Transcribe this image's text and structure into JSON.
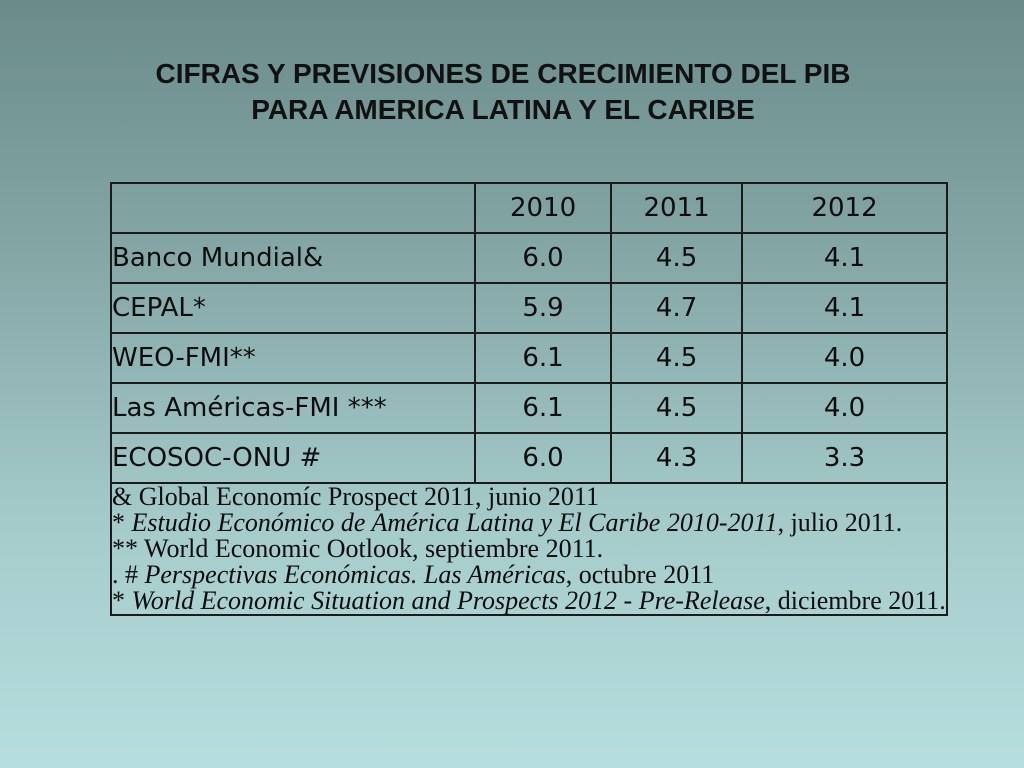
{
  "title": {
    "line1": "CIFRAS Y PREVISIONES DE CRECIMIENTO DEL PIB",
    "line2": "PARA AMERICA LATINA Y EL CARIBE"
  },
  "table": {
    "corner": "",
    "headers": [
      "2010",
      "2011",
      "2012"
    ],
    "rows": [
      {
        "label": "Banco Mundial&",
        "values": [
          "6.0",
          "4.5",
          "4.1"
        ]
      },
      {
        "label": "CEPAL*",
        "values": [
          "5.9",
          "4.7",
          "4.1"
        ]
      },
      {
        "label": "WEO-FMI**",
        "values": [
          "6.1",
          "4.5",
          "4.0"
        ]
      },
      {
        "label": "Las Américas-FMI ***",
        "values": [
          "6.1",
          "4.5",
          "4.0"
        ]
      },
      {
        "label": "ECOSOC-ONU #",
        "values": [
          "6.0",
          "4.3",
          "3.3"
        ]
      }
    ]
  },
  "notes": [
    {
      "prefix": "& ",
      "italic": "",
      "suffix": "Global Economíc Prospect 2011, junio 2011"
    },
    {
      "prefix": "* ",
      "italic": "Estudio Económico de América Latina y El Caribe 2010-2011",
      "suffix": ", julio 2011."
    },
    {
      "prefix": "** ",
      "italic": "",
      "suffix": "World Economic Ootlook, septiembre 2011."
    },
    {
      "prefix": ". # ",
      "italic": "Perspectivas Económicas. Las Américas",
      "suffix": ", octubre 2011"
    },
    {
      "prefix": "* ",
      "italic": "World Economic Situation and Prospects 2012 - Pre-Release",
      "suffix": ", diciembre 2011."
    }
  ]
}
